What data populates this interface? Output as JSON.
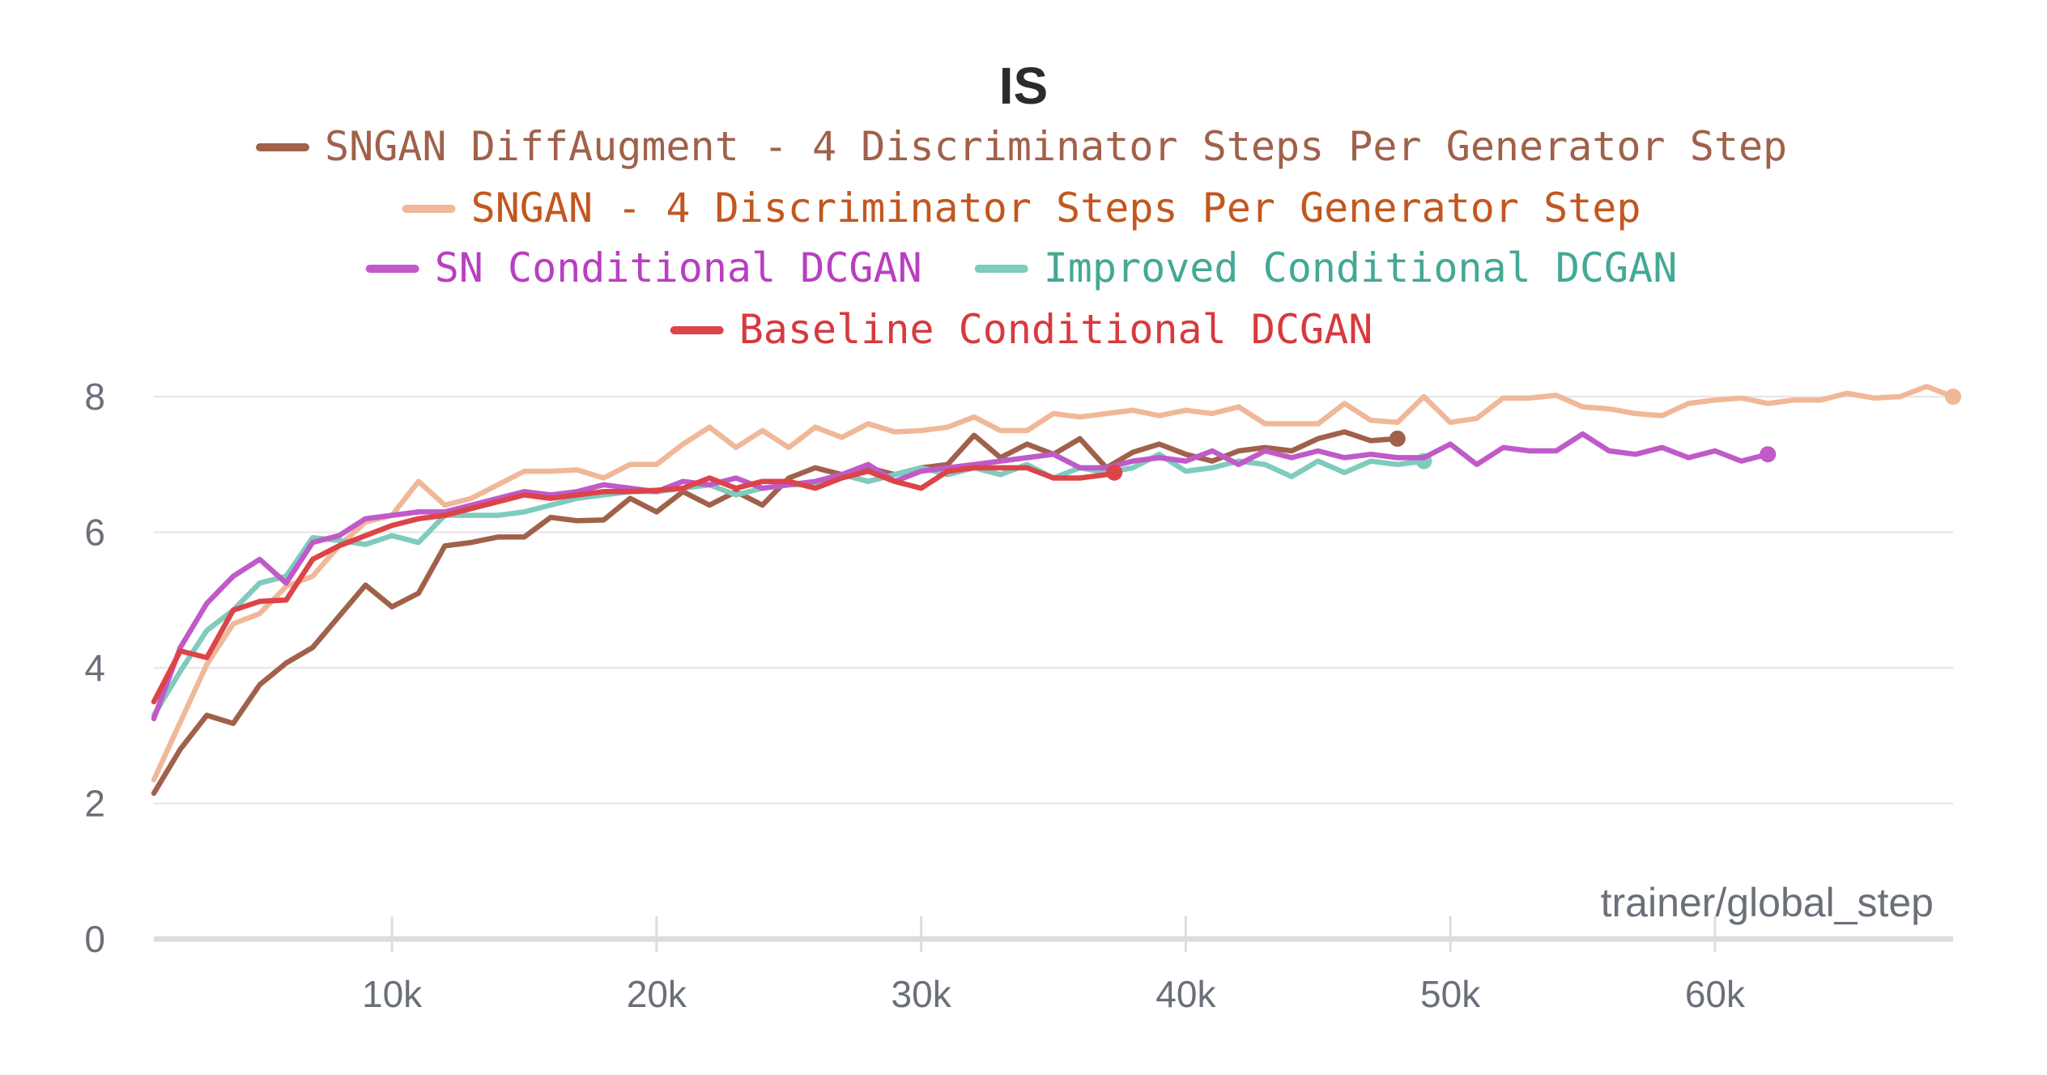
{
  "chart_data": {
    "type": "line",
    "title": "IS",
    "xlabel": "trainer/global_step",
    "ylabel": "",
    "xlim": [
      1000,
      69000
    ],
    "ylim": [
      0,
      8
    ],
    "yticks": [
      0,
      2,
      4,
      6,
      8
    ],
    "xticks": [
      10000,
      20000,
      30000,
      40000,
      50000,
      60000
    ],
    "xtick_labels": [
      "10k",
      "20k",
      "30k",
      "40k",
      "50k",
      "60k"
    ],
    "grid": true,
    "legend_position": "top-center",
    "series": [
      {
        "name": "SNGAN DiffAugment - 4 Discriminator Steps Per Generator Step",
        "color": "#a0614a",
        "text_color": "#a0614a",
        "x": [
          1000,
          2000,
          3000,
          4000,
          5000,
          6000,
          7000,
          8000,
          9000,
          10000,
          11000,
          12000,
          13000,
          14000,
          15000,
          16000,
          17000,
          18000,
          19000,
          20000,
          21000,
          22000,
          23000,
          24000,
          25000,
          26000,
          27000,
          28000,
          29000,
          30000,
          31000,
          32000,
          33000,
          34000,
          35000,
          36000,
          37000,
          38000,
          39000,
          40000,
          41000,
          42000,
          43000,
          44000,
          45000,
          46000,
          47000,
          48000
        ],
        "y": [
          2.15,
          2.8,
          3.3,
          3.18,
          3.75,
          4.07,
          4.3,
          4.76,
          5.22,
          4.9,
          5.1,
          5.8,
          5.85,
          5.93,
          5.93,
          6.22,
          6.17,
          6.18,
          6.5,
          6.3,
          6.6,
          6.4,
          6.6,
          6.4,
          6.8,
          6.95,
          6.85,
          6.95,
          6.85,
          6.95,
          7.0,
          7.43,
          7.1,
          7.3,
          7.15,
          7.38,
          6.95,
          7.18,
          7.3,
          7.15,
          7.05,
          7.2,
          7.25,
          7.2,
          7.38,
          7.48,
          7.35,
          7.38
        ]
      },
      {
        "name": "SNGAN - 4 Discriminator Steps Per Generator Step",
        "color": "#f0b898",
        "text_color": "#c2571f",
        "x": [
          1000,
          2000,
          3000,
          4000,
          5000,
          6000,
          7000,
          8000,
          9000,
          10000,
          11000,
          12000,
          13000,
          14000,
          15000,
          16000,
          17000,
          18000,
          19000,
          20000,
          21000,
          22000,
          23000,
          24000,
          25000,
          26000,
          27000,
          28000,
          29000,
          30000,
          31000,
          32000,
          33000,
          34000,
          35000,
          36000,
          37000,
          38000,
          39000,
          40000,
          41000,
          42000,
          43000,
          44000,
          45000,
          46000,
          47000,
          48000,
          49000,
          50000,
          51000,
          52000,
          53000,
          54000,
          55000,
          56000,
          57000,
          58000,
          59000,
          60000,
          61000,
          62000,
          63000,
          64000,
          65000,
          66000,
          67000,
          68000,
          69000
        ],
        "y": [
          2.35,
          3.2,
          4.05,
          4.65,
          4.8,
          5.2,
          5.35,
          5.8,
          6.15,
          6.25,
          6.75,
          6.4,
          6.5,
          6.7,
          6.9,
          6.9,
          6.92,
          6.8,
          7.0,
          7.0,
          7.3,
          7.55,
          7.25,
          7.5,
          7.25,
          7.55,
          7.4,
          7.6,
          7.48,
          7.5,
          7.55,
          7.7,
          7.5,
          7.5,
          7.75,
          7.7,
          7.75,
          7.8,
          7.72,
          7.8,
          7.75,
          7.85,
          7.6,
          7.6,
          7.6,
          7.9,
          7.65,
          7.62,
          8.0,
          7.62,
          7.68,
          7.98,
          7.98,
          8.02,
          7.85,
          7.82,
          7.75,
          7.72,
          7.9,
          7.95,
          7.98,
          7.9,
          7.95,
          7.95,
          8.05,
          7.98,
          8.0,
          8.15,
          8.0
        ]
      },
      {
        "name": "SN Conditional DCGAN",
        "color": "#c05ac8",
        "text_color": "#b83fc0",
        "x": [
          1000,
          2000,
          3000,
          4000,
          5000,
          6000,
          7000,
          8000,
          9000,
          10000,
          11000,
          12000,
          13000,
          14000,
          15000,
          16000,
          17000,
          18000,
          19000,
          20000,
          21000,
          22000,
          23000,
          24000,
          25000,
          26000,
          27000,
          28000,
          29000,
          30000,
          31000,
          32000,
          33000,
          34000,
          35000,
          36000,
          37000,
          38000,
          39000,
          40000,
          41000,
          42000,
          43000,
          44000,
          45000,
          46000,
          47000,
          48000,
          49000,
          50000,
          51000,
          52000,
          53000,
          54000,
          55000,
          56000,
          57000,
          58000,
          59000,
          60000,
          61000,
          62000
        ],
        "y": [
          3.25,
          4.3,
          4.95,
          5.35,
          5.6,
          5.25,
          5.85,
          5.95,
          6.2,
          6.25,
          6.3,
          6.3,
          6.4,
          6.5,
          6.6,
          6.55,
          6.6,
          6.7,
          6.65,
          6.6,
          6.75,
          6.7,
          6.8,
          6.65,
          6.7,
          6.75,
          6.85,
          7.0,
          6.75,
          6.9,
          6.95,
          7.0,
          7.05,
          7.1,
          7.15,
          6.95,
          6.95,
          7.05,
          7.1,
          7.05,
          7.2,
          7.0,
          7.2,
          7.1,
          7.2,
          7.1,
          7.15,
          7.1,
          7.1,
          7.3,
          7.0,
          7.25,
          7.2,
          7.2,
          7.45,
          7.2,
          7.15,
          7.25,
          7.1,
          7.2,
          7.05,
          7.15
        ]
      },
      {
        "name": "Improved Conditional DCGAN",
        "color": "#7fcbbd",
        "text_color": "#44a896",
        "x": [
          1000,
          2000,
          3000,
          4000,
          5000,
          6000,
          7000,
          8000,
          9000,
          10000,
          11000,
          12000,
          13000,
          14000,
          15000,
          16000,
          17000,
          18000,
          19000,
          20000,
          21000,
          22000,
          23000,
          24000,
          25000,
          26000,
          27000,
          28000,
          29000,
          30000,
          31000,
          32000,
          33000,
          34000,
          35000,
          36000,
          37000,
          38000,
          39000,
          40000,
          41000,
          42000,
          43000,
          44000,
          45000,
          46000,
          47000,
          48000,
          49000
        ],
        "y": [
          3.3,
          3.95,
          4.55,
          4.85,
          5.25,
          5.35,
          5.92,
          5.88,
          5.82,
          5.95,
          5.85,
          6.25,
          6.25,
          6.25,
          6.3,
          6.4,
          6.5,
          6.55,
          6.6,
          6.6,
          6.65,
          6.7,
          6.55,
          6.65,
          6.7,
          6.7,
          6.85,
          6.75,
          6.85,
          6.95,
          6.85,
          6.95,
          6.85,
          7.0,
          6.8,
          6.95,
          6.88,
          6.95,
          7.15,
          6.9,
          6.95,
          7.05,
          7.0,
          6.82,
          7.05,
          6.88,
          7.05,
          7.0,
          7.05
        ]
      },
      {
        "name": "Baseline Conditional DCGAN",
        "color": "#dc4448",
        "text_color": "#d63a3e",
        "x": [
          1000,
          2000,
          3000,
          4000,
          5000,
          6000,
          7000,
          8000,
          9000,
          10000,
          11000,
          12000,
          13000,
          14000,
          15000,
          16000,
          17000,
          18000,
          19000,
          20000,
          21000,
          22000,
          23000,
          24000,
          25000,
          26000,
          27000,
          28000,
          29000,
          30000,
          31000,
          32000,
          33000,
          34000,
          35000,
          36000,
          37000,
          37300
        ],
        "y": [
          3.5,
          4.25,
          4.15,
          4.85,
          4.98,
          5.0,
          5.6,
          5.8,
          5.95,
          6.1,
          6.2,
          6.25,
          6.35,
          6.45,
          6.55,
          6.5,
          6.55,
          6.6,
          6.6,
          6.62,
          6.65,
          6.8,
          6.65,
          6.75,
          6.75,
          6.65,
          6.8,
          6.9,
          6.75,
          6.65,
          6.9,
          6.95,
          6.95,
          6.95,
          6.8,
          6.8,
          6.85,
          6.88
        ]
      }
    ]
  }
}
